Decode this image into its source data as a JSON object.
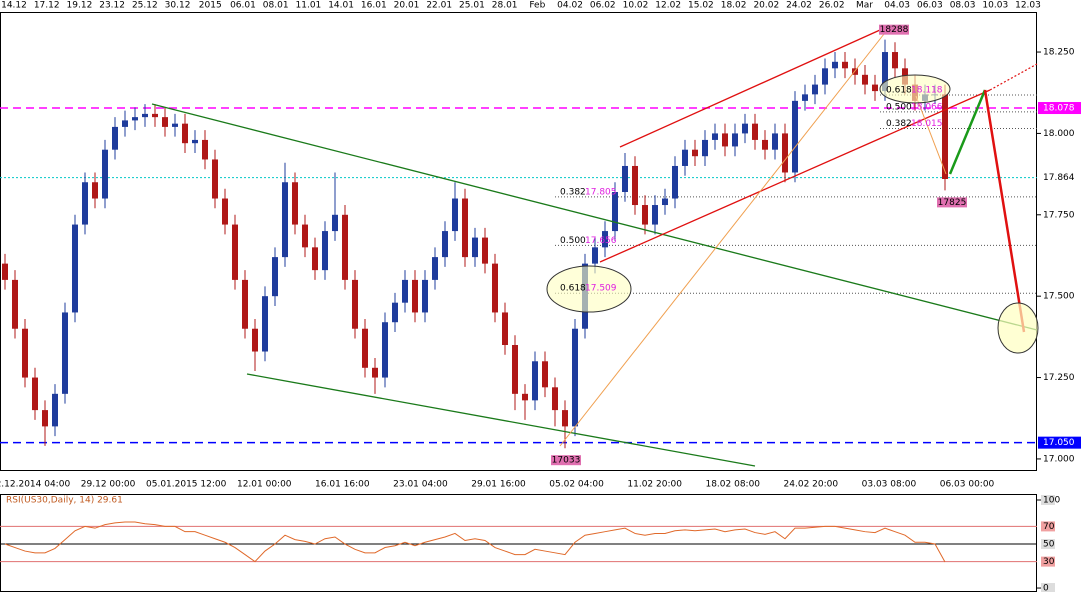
{
  "chart_data": [
    {
      "type": "candlestick",
      "top_labels": [
        "14.12",
        "17.12",
        "19.12",
        "23.12",
        "25.12",
        "30.12",
        "2015",
        "06.01",
        "08.01",
        "11.01",
        "14.01",
        "16.01",
        "20.01",
        "22.01",
        "25.01",
        "28.01",
        "Feb",
        "04.02",
        "06.02",
        "10.02",
        "12.02",
        "15.02",
        "18.02",
        "20.02",
        "24.02",
        "26.02",
        "Mar",
        "04.03",
        "06.03",
        "08.03",
        "10.03",
        "12.03"
      ],
      "x_labels": [
        "12.12.2014 04:00",
        "29.12 00:00",
        "05.01.2015 12:00",
        "12.01 00:00",
        "16.01 16:00",
        "23.01 04:00",
        "29.01 16:00",
        "05.02 04:00",
        "11.02 20:00",
        "18.02 08:00",
        "24.02 20:00",
        "03.03 08:00",
        "06.03 00:00"
      ],
      "open": [
        17.6,
        17.55,
        17.4,
        17.25,
        17.15,
        17.1,
        17.2,
        17.45,
        17.72,
        17.85,
        17.8,
        17.95,
        18.02,
        18.04,
        18.05,
        18.06,
        18.05,
        18.02,
        18.03,
        17.97,
        17.98,
        17.92,
        17.8,
        17.72,
        17.55,
        17.4,
        17.33,
        17.5,
        17.62,
        17.85,
        17.72,
        17.65,
        17.58,
        17.7,
        17.75,
        17.55,
        17.4,
        17.28,
        17.25,
        17.42,
        17.48,
        17.55,
        17.45,
        17.55,
        17.62,
        17.7,
        17.8,
        17.62,
        17.68,
        17.6,
        17.45,
        17.35,
        17.2,
        17.18,
        17.3,
        17.22,
        17.15,
        17.1,
        17.4,
        17.6,
        17.65,
        17.7,
        17.82,
        17.9,
        17.78,
        17.72,
        17.78,
        17.8,
        17.9,
        17.95,
        17.93,
        17.98,
        18.0,
        17.96,
        18.0,
        18.03,
        17.98,
        17.95,
        18.0,
        17.88,
        18.1,
        18.12,
        18.15,
        18.2,
        18.22,
        18.2,
        18.18,
        18.15,
        18.13,
        18.25,
        18.2,
        18.15,
        18.1,
        18.12,
        18.12
      ],
      "high": [
        17.63,
        17.58,
        17.43,
        17.28,
        17.18,
        17.23,
        17.48,
        17.75,
        17.88,
        17.88,
        17.98,
        18.05,
        18.07,
        18.08,
        18.09,
        18.09,
        18.08,
        18.06,
        18.06,
        18.01,
        18.01,
        17.95,
        17.83,
        17.75,
        17.58,
        17.43,
        17.53,
        17.65,
        17.91,
        17.88,
        17.75,
        17.68,
        17.73,
        17.88,
        17.78,
        17.58,
        17.43,
        17.31,
        17.45,
        17.51,
        17.58,
        17.58,
        17.58,
        17.65,
        17.73,
        17.85,
        17.83,
        17.71,
        17.71,
        17.63,
        17.48,
        17.38,
        17.23,
        17.33,
        17.33,
        17.25,
        17.18,
        17.43,
        17.63,
        17.68,
        17.73,
        17.85,
        17.94,
        17.93,
        17.81,
        17.81,
        17.83,
        17.93,
        17.98,
        17.98,
        18.01,
        18.03,
        18.03,
        18.03,
        18.06,
        18.06,
        18.01,
        18.03,
        18.03,
        18.13,
        18.15,
        18.18,
        18.23,
        18.25,
        18.25,
        18.23,
        18.21,
        18.18,
        18.288,
        18.28,
        18.23,
        18.18,
        18.15,
        18.15,
        18.15
      ],
      "low": [
        17.52,
        17.37,
        17.22,
        17.12,
        17.04,
        17.07,
        17.17,
        17.42,
        17.69,
        17.77,
        17.77,
        17.92,
        17.99,
        18.01,
        18.02,
        18.02,
        17.99,
        17.99,
        17.94,
        17.94,
        17.89,
        17.77,
        17.69,
        17.52,
        17.37,
        17.27,
        17.3,
        17.47,
        17.59,
        17.69,
        17.62,
        17.55,
        17.55,
        17.67,
        17.52,
        17.37,
        17.25,
        17.2,
        17.22,
        17.39,
        17.45,
        17.42,
        17.42,
        17.52,
        17.59,
        17.67,
        17.59,
        17.59,
        17.57,
        17.42,
        17.32,
        17.15,
        17.12,
        17.15,
        17.19,
        17.1,
        17.033,
        17.07,
        17.37,
        17.57,
        17.62,
        17.67,
        17.79,
        17.75,
        17.69,
        17.69,
        17.75,
        17.77,
        17.87,
        17.9,
        17.9,
        17.95,
        17.93,
        17.93,
        17.97,
        17.95,
        17.92,
        17.92,
        17.85,
        17.85,
        18.07,
        18.09,
        18.12,
        18.17,
        18.17,
        18.15,
        18.12,
        18.1,
        18.1,
        18.17,
        18.12,
        18.07,
        18.07,
        18.09,
        17.825
      ],
      "close": [
        17.55,
        17.4,
        17.25,
        17.15,
        17.1,
        17.2,
        17.45,
        17.72,
        17.85,
        17.8,
        17.95,
        18.02,
        18.04,
        18.05,
        18.06,
        18.05,
        18.02,
        18.03,
        17.97,
        17.98,
        17.92,
        17.8,
        17.72,
        17.55,
        17.4,
        17.33,
        17.5,
        17.62,
        17.85,
        17.72,
        17.65,
        17.58,
        17.7,
        17.75,
        17.55,
        17.4,
        17.28,
        17.25,
        17.42,
        17.48,
        17.55,
        17.45,
        17.55,
        17.62,
        17.7,
        17.8,
        17.62,
        17.68,
        17.6,
        17.45,
        17.35,
        17.2,
        17.18,
        17.3,
        17.22,
        17.15,
        17.1,
        17.4,
        17.6,
        17.65,
        17.7,
        17.82,
        17.9,
        17.78,
        17.72,
        17.78,
        17.8,
        17.9,
        17.95,
        17.93,
        17.98,
        18.0,
        17.96,
        18.0,
        18.03,
        17.98,
        17.95,
        18.0,
        17.88,
        18.1,
        18.12,
        18.15,
        18.2,
        18.22,
        18.2,
        18.18,
        18.15,
        18.13,
        18.25,
        18.2,
        18.15,
        18.1,
        18.12,
        18.12,
        17.86
      ],
      "up_color": "#1f3c9c",
      "down_color": "#b01818",
      "ylim": [
        16.966,
        18.373
      ],
      "yticks": [
        {
          "value": 17.0,
          "label": "17.000"
        },
        {
          "value": 17.25,
          "label": "17.250"
        },
        {
          "value": 17.5,
          "label": "17.500"
        },
        {
          "value": 17.75,
          "label": "17.750"
        },
        {
          "value": 18.0,
          "label": "18.000"
        },
        {
          "value": 18.25,
          "label": "18.250"
        }
      ],
      "levels": [
        {
          "value": 18.078,
          "label": "18.078",
          "color": "#ff00ff"
        },
        {
          "value": 17.864,
          "label": "17.864",
          "color": "#00c8c8"
        },
        {
          "value": 17.05,
          "label": "17.050",
          "color": "#0000ff"
        }
      ],
      "fib_lower": [
        {
          "ratio": "0.382",
          "price": 17.805
        },
        {
          "ratio": "0.500",
          "price": 17.656
        },
        {
          "ratio": "0.618",
          "price": 17.509
        }
      ],
      "fib_upper": [
        {
          "ratio": "0.618",
          "price": 18.118
        },
        {
          "ratio": "0.500",
          "price": 18.066
        },
        {
          "ratio": "0.382",
          "price": 18.015
        }
      ],
      "price_labels": [
        {
          "value": 18.288,
          "label": "18288"
        },
        {
          "value": 17.033,
          "label": "17033"
        },
        {
          "value": 17.825,
          "label": "17825"
        }
      ]
    },
    {
      "type": "line",
      "title": "RSI(US30,Daily, 14) 29.61",
      "color": "#e0692a",
      "values": [
        50,
        46,
        42,
        40,
        40,
        45,
        55,
        65,
        70,
        68,
        72,
        74,
        75,
        75,
        73,
        72,
        70,
        70,
        64,
        64,
        60,
        56,
        52,
        46,
        38,
        30,
        42,
        50,
        60,
        55,
        53,
        50,
        56,
        58,
        50,
        44,
        40,
        40,
        46,
        48,
        52,
        48,
        52,
        55,
        58,
        62,
        54,
        56,
        54,
        46,
        42,
        38,
        38,
        44,
        42,
        40,
        38,
        52,
        60,
        62,
        64,
        66,
        68,
        62,
        60,
        62,
        62,
        65,
        66,
        65,
        66,
        67,
        64,
        66,
        67,
        63,
        61,
        64,
        56,
        68,
        68,
        69,
        70,
        70,
        68,
        66,
        64,
        63,
        68,
        64,
        60,
        52,
        52,
        50,
        29.61
      ],
      "ylim": [
        -4.5,
        106.8
      ],
      "yticks": [
        0,
        30,
        50,
        70,
        100
      ]
    }
  ]
}
